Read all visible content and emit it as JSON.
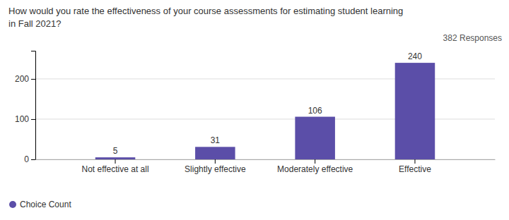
{
  "chart_data": {
    "type": "bar",
    "title": [
      "How would you rate the effectiveness of your course assessments for estimating student learning",
      "in Fall 2021?"
    ],
    "annotations": [
      "382 Responses"
    ],
    "categories": [
      "Not effective at all",
      "Slightly effective",
      "Moderately effective",
      "Effective"
    ],
    "series": [
      {
        "name": "Choice Count",
        "color": "#5b4ea8",
        "values": [
          5,
          31,
          106,
          240
        ]
      }
    ],
    "ylim": [
      0,
      270
    ],
    "yticks": [
      0,
      100,
      200
    ],
    "grid": true,
    "data_labels": true,
    "legend": "lower left"
  }
}
